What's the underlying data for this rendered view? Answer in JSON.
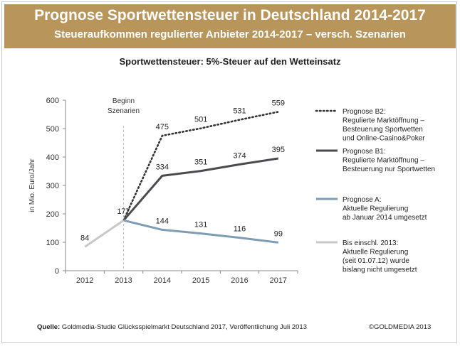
{
  "header": {
    "title": "Prognose Sportwettensteuer in Deutschland 2014-2017",
    "subtitle": "Steueraufkommen regulierter Anbieter 2014-2017 – versch. Szenarien"
  },
  "chart_data": {
    "type": "line",
    "title": "Sportwettensteuer: 5%-Steuer auf den Wetteinsatz",
    "xlabel": "",
    "ylabel": "in Mio. Euro/Jahr",
    "categories": [
      "2012",
      "2013",
      "2014",
      "2015",
      "2016",
      "2017"
    ],
    "ylim": [
      0,
      600
    ],
    "yticks": [
      "0",
      "100",
      "200",
      "300",
      "400",
      "500",
      "600"
    ],
    "annotation": [
      "Beginn",
      "Szenarien"
    ],
    "series": [
      {
        "name": "Prognose B2",
        "legend": [
          "Prognose B2:",
          "Regulierte Marktöffnung –",
          "Besteuerung Sportwetten",
          "und Online-Casino&Poker"
        ],
        "style": "dotted",
        "color": "#333333",
        "points": [
          [
            "2013",
            177
          ],
          [
            "2014",
            475
          ],
          [
            "2015",
            501
          ],
          [
            "2016",
            531
          ],
          [
            "2017",
            559
          ]
        ],
        "labels": [
          "475",
          "501",
          "531",
          "559"
        ]
      },
      {
        "name": "Prognose B1",
        "legend": [
          "Prognose B1:",
          "Regulierte Marktöffnung –",
          "Besteuerung nur Sportwetten"
        ],
        "style": "solid",
        "color": "#4a4a4f",
        "points": [
          [
            "2013",
            177
          ],
          [
            "2014",
            334
          ],
          [
            "2015",
            351
          ],
          [
            "2016",
            374
          ],
          [
            "2017",
            395
          ]
        ],
        "labels": [
          "334",
          "351",
          "374",
          "395"
        ]
      },
      {
        "name": "Prognose A",
        "legend": [
          "Prognose A:",
          "Aktuelle Regulierung",
          "ab Januar 2014 umgesetzt"
        ],
        "style": "solid",
        "color": "#7e9db3",
        "points": [
          [
            "2013",
            177
          ],
          [
            "2014",
            144
          ],
          [
            "2015",
            131
          ],
          [
            "2016",
            116
          ],
          [
            "2017",
            99
          ]
        ],
        "labels": [
          "144",
          "131",
          "116",
          "99"
        ]
      },
      {
        "name": "Bis einschl. 2013",
        "legend": [
          "Bis einschl. 2013:",
          "Aktuelle Regulierung",
          "(seit 01.07.12) wurde",
          "bislang nicht umgesetzt"
        ],
        "style": "solid",
        "color": "#c8c8c8",
        "points": [
          [
            "2012",
            84
          ],
          [
            "2013",
            177
          ]
        ],
        "labels": [
          "84",
          "177"
        ]
      }
    ]
  },
  "footer": {
    "source_label": "Quelle:",
    "source_text": " Goldmedia-Studie Glücksspielmarkt Deutschland 2017, Veröffentlichung Juli 2013",
    "copyright": "©GOLDMEDIA 2013"
  }
}
